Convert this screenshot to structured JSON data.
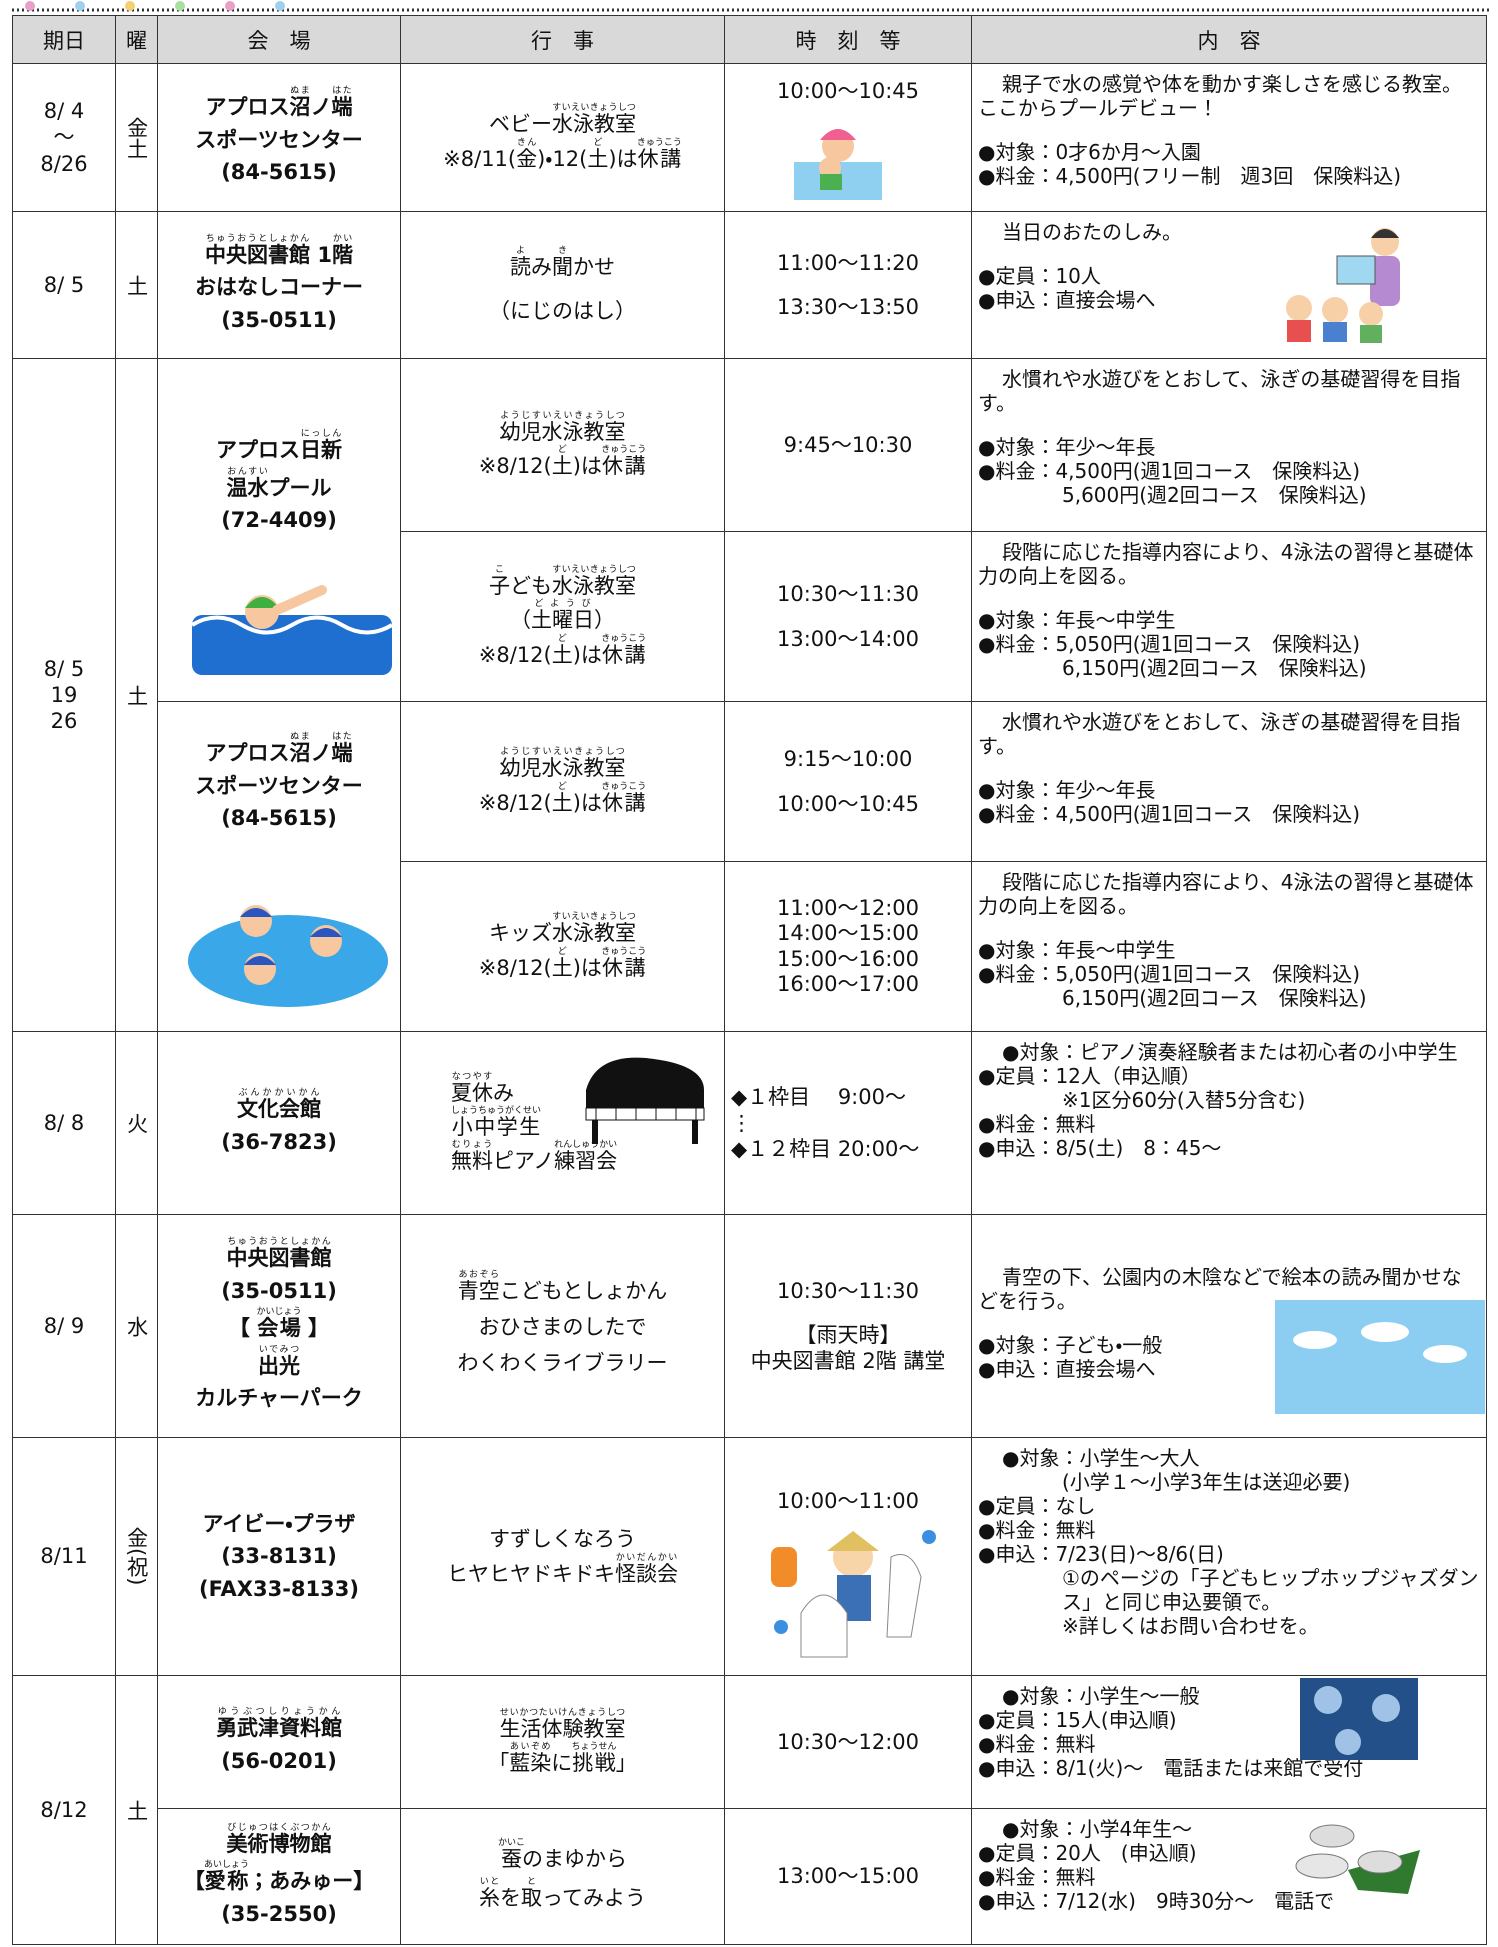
{
  "headers": [
    "期日",
    "曜",
    "会　場",
    "行　事",
    "時　刻　等",
    "内　容"
  ],
  "rows": [
    {
      "date": [
        [
          "8/ 4",
          "〜",
          "8/26"
        ]
      ],
      "day": [
        [
          "金土"
        ]
      ],
      "venue": [
        [
          [
            "アプロス",
            [
              "沼",
              "ぬま"
            ],
            "ノ",
            [
              "端",
              "はた"
            ]
          ],
          "スポーツセンター",
          "(84-5615)"
        ]
      ],
      "event": [
        [
          [
            "ベビー",
            [
              "水泳教室",
              "すいえいきょうしつ"
            ]
          ],
          [
            "※8/11(",
            [
              "金",
              "きん"
            ],
            ")・12(",
            [
              "土",
              "ど"
            ],
            ")は",
            [
              "休講",
              "きゅうこう"
            ]
          ]
        ]
      ],
      "time": [
        [
          "10:00〜10:45"
        ]
      ],
      "details": [
        [
          "親子で水の感覚や体を動かす楽しさを感じる教室。ここからプールデビュー！"
        ],
        [
          "●対象：0才6か月〜入園",
          "●料金：4,500円(フリー制　週3回　保険料込)"
        ]
      ]
    },
    {
      "date": [
        [
          "8/ 5"
        ]
      ],
      "day": [
        [
          "土"
        ]
      ],
      "venue": [
        [
          [
            [
              "中央図書館",
              "ちゅうおうとしょかん"
            ],
            " 1",
            [
              "階",
              "かい"
            ]
          ],
          "おはなしコーナー",
          "(35-0511)"
        ]
      ],
      "event": [
        [
          [
            [
              "読",
              "よ"
            ],
            "み",
            [
              "聞",
              "き"
            ],
            "かせ"
          ]
        ],
        [
          "（にじのはし）"
        ]
      ],
      "time": [
        [
          "11:00〜11:20"
        ],
        [
          "13:30〜13:50"
        ]
      ],
      "details": [
        [
          "当日のおたのしみ。"
        ],
        [
          "●定員：10人",
          "●申込：直接会場へ"
        ]
      ]
    },
    {
      "date": [
        [
          "8/ 5",
          "19",
          "26"
        ]
      ],
      "day": [
        [
          "土"
        ]
      ],
      "venue": [
        [
          [
            "アプロス",
            [
              "日新",
              "にっしん"
            ]
          ],
          [
            [
              "温水",
              "おんすい"
            ],
            "プール"
          ],
          "(72-4409)"
        ]
      ],
      "event": [
        [
          [
            [
              "幼児水泳教室",
              "ようじすいえいきょうしつ"
            ]
          ],
          [
            "※8/12(",
            [
              "土",
              "ど"
            ],
            ")は",
            [
              "休講",
              "きゅうこう"
            ]
          ]
        ]
      ],
      "time": [
        [
          "9:45〜10:30"
        ]
      ],
      "details": [
        [
          "水慣れや水遊びをとおして、泳ぎの基礎習得を目指す。"
        ],
        [
          "●対象：年少〜年長",
          "●料金：4,500円(週1回コース　保険料込)",
          "5,600円(週2回コース　保険料込)"
        ]
      ]
    },
    {
      "event": [
        [
          [
            [
              "子",
              "こ"
            ],
            "ども",
            [
              "水泳教室",
              "すいえいきょうしつ"
            ]
          ],
          [
            "（",
            [
              "土曜日",
              "どようび"
            ],
            "）"
          ],
          [
            "※8/12(",
            [
              "土",
              "ど"
            ],
            ")は",
            [
              "休講",
              "きゅうこう"
            ]
          ]
        ]
      ],
      "time": [
        [
          "10:30〜11:30"
        ],
        [
          "13:00〜14:00"
        ]
      ],
      "details": [
        [
          "段階に応じた指導内容により、4泳法の習得と基礎体力の向上を図る。"
        ],
        [
          "●対象：年長〜中学生",
          "●料金：5,050円(週1回コース　保険料込)",
          "6,150円(週2回コース　保険料込)"
        ]
      ]
    },
    {
      "venue": [
        [
          [
            "アプロス",
            [
              "沼",
              "ぬま"
            ],
            "ノ",
            [
              "端",
              "はた"
            ]
          ],
          "スポーツセンター",
          "(84-5615)"
        ]
      ],
      "event": [
        [
          [
            [
              "幼児水泳教室",
              "ようじすいえいきょうしつ"
            ]
          ],
          [
            "※8/12(",
            [
              "土",
              "ど"
            ],
            ")は",
            [
              "休講",
              "きゅうこう"
            ]
          ]
        ]
      ],
      "time": [
        [
          "9:15〜10:00"
        ],
        [
          "10:00〜10:45"
        ]
      ],
      "details": [
        [
          "水慣れや水遊びをとおして、泳ぎの基礎習得を目指す。"
        ],
        [
          "●対象：年少〜年長",
          "●料金：4,500円(週1回コース　保険料込)"
        ]
      ]
    },
    {
      "event": [
        [
          [
            "キッズ",
            [
              "水泳教室",
              "すいえいきょうしつ"
            ]
          ],
          [
            "※8/12(",
            [
              "土",
              "ど"
            ],
            ")は",
            [
              "休講",
              "きゅうこう"
            ]
          ]
        ]
      ],
      "time": [
        [
          "11:00〜12:00",
          "14:00〜15:00",
          "15:00〜16:00",
          "16:00〜17:00"
        ]
      ],
      "details": [
        [
          "段階に応じた指導内容により、4泳法の習得と基礎体力の向上を図る。"
        ],
        [
          "●対象：年長〜中学生",
          "●料金：5,050円(週1回コース　保険料込)",
          "6,150円(週2回コース　保険料込)"
        ]
      ]
    },
    {
      "date": [
        [
          "8/ 8"
        ]
      ],
      "day": [
        [
          "火"
        ]
      ],
      "venue": [
        [
          [
            [
              "文化会館",
              "ぶんかかいかん"
            ]
          ],
          "(36-7823)"
        ]
      ],
      "event": [
        [
          [
            [
              "夏休",
              "なつやす"
            ],
            "み"
          ],
          [
            [
              "小中学生",
              "しょうちゅうがくせい"
            ]
          ],
          [
            [
              "無料",
              "むりょう"
            ],
            "ピアノ",
            [
              "練習会",
              "れんしゅうかい"
            ]
          ]
        ]
      ],
      "time": [
        [
          "◆１枠目　 9:00〜",
          "⋮",
          "◆１２枠目 20:00〜"
        ]
      ],
      "details": [
        [
          "●対象：ピアノ演奏経験者または初心者の小中学生",
          "●定員：12人（申込順）",
          "※1区分60分(入替5分含む)",
          "●料金：無料",
          "●申込：8/5(土)　8：45〜"
        ]
      ]
    },
    {
      "date": [
        [
          "8/ 9"
        ]
      ],
      "day": [
        [
          "水"
        ]
      ],
      "venue": [
        [
          [
            [
              "中央図書館",
              "ちゅうおうとしょかん"
            ]
          ],
          "(35-0511)",
          [
            "【 ",
            [
              "会場",
              "かいじょう"
            ],
            " 】"
          ],
          [
            [
              "出光",
              "いでみつ"
            ]
          ],
          "カルチャーパーク"
        ]
      ],
      "event": [
        [
          [
            [
              "青空",
              "あおぞら"
            ],
            "こどもとしょかん"
          ],
          "おひさまのしたで",
          "わくわくライブラリー"
        ]
      ],
      "time": [
        [
          "10:30〜11:30"
        ],
        [
          "【雨天時】",
          "中央図書館 2階 講堂"
        ]
      ],
      "details": [
        [
          "青空の下、公園内の木陰などで絵本の読み聞かせなどを行う。"
        ],
        [
          "●対象：子ども・一般",
          "●申込：直接会場へ"
        ]
      ]
    },
    {
      "date": [
        [
          "8/11"
        ]
      ],
      "day": [
        [
          "金(祝)"
        ]
      ],
      "venue": [
        [
          "アイビー・プラザ",
          "(33-8131)",
          "(FAX33-8133)"
        ]
      ],
      "event": [
        [
          "すずしくなろう",
          [
            "ヒヤヒヤドキドキ",
            [
              "怪談会",
              "かいだんかい"
            ]
          ]
        ]
      ],
      "time": [
        [
          "10:00〜11:00"
        ]
      ],
      "details": [
        [
          "●対象：小学生〜大人",
          "(小学１〜小学3年生は送迎必要)",
          "●定員：なし",
          "●料金：無料",
          "●申込：7/23(日)〜8/6(日)",
          "①のページの「子どもヒップホップジャズダンス」と同じ申込要領で。",
          "※詳しくはお問い合わせを。"
        ]
      ]
    },
    {
      "date": [
        [
          "8/12"
        ]
      ],
      "day": [
        [
          "土"
        ]
      ],
      "venue": [
        [
          [
            [
              "勇武津資料館",
              "ゆうぶつしりょうかん"
            ]
          ],
          "(56-0201)"
        ]
      ],
      "event": [
        [
          [
            [
              "生活体験教室",
              "せいかつたいけんきょうしつ"
            ]
          ],
          [
            "「",
            [
              "藍染",
              "あいぞめ"
            ],
            "に",
            [
              "挑戦",
              "ちょうせん"
            ],
            "」"
          ]
        ]
      ],
      "time": [
        [
          "10:30〜12:00"
        ]
      ],
      "details": [
        [
          "●対象：小学生〜一般",
          "●定員：15人(申込順)",
          "●料金：無料",
          "●申込：8/1(火)〜　電話または来館で受付"
        ]
      ]
    },
    {
      "venue": [
        [
          [
            [
              "美術博物館",
              "びじゅつはくぶつかん"
            ]
          ],
          [
            "【",
            [
              "愛称",
              "あいしょう"
            ],
            "；あみゅー】"
          ],
          "(35-2550)"
        ]
      ],
      "event": [
        [
          [
            [
              "蚕",
              "かいこ"
            ],
            "のまゆから"
          ],
          [
            [
              "糸",
              "いと"
            ],
            "を",
            [
              "取",
              "と"
            ],
            "ってみよう"
          ]
        ]
      ],
      "time": [
        [
          "13:00〜15:00"
        ]
      ],
      "details": [
        [
          "●対象：小学4年生〜",
          "●定員：20人　(申込順)",
          "●料金：無料",
          "●申込：7/12(水)　9時30分〜　電話で"
        ]
      ]
    }
  ]
}
